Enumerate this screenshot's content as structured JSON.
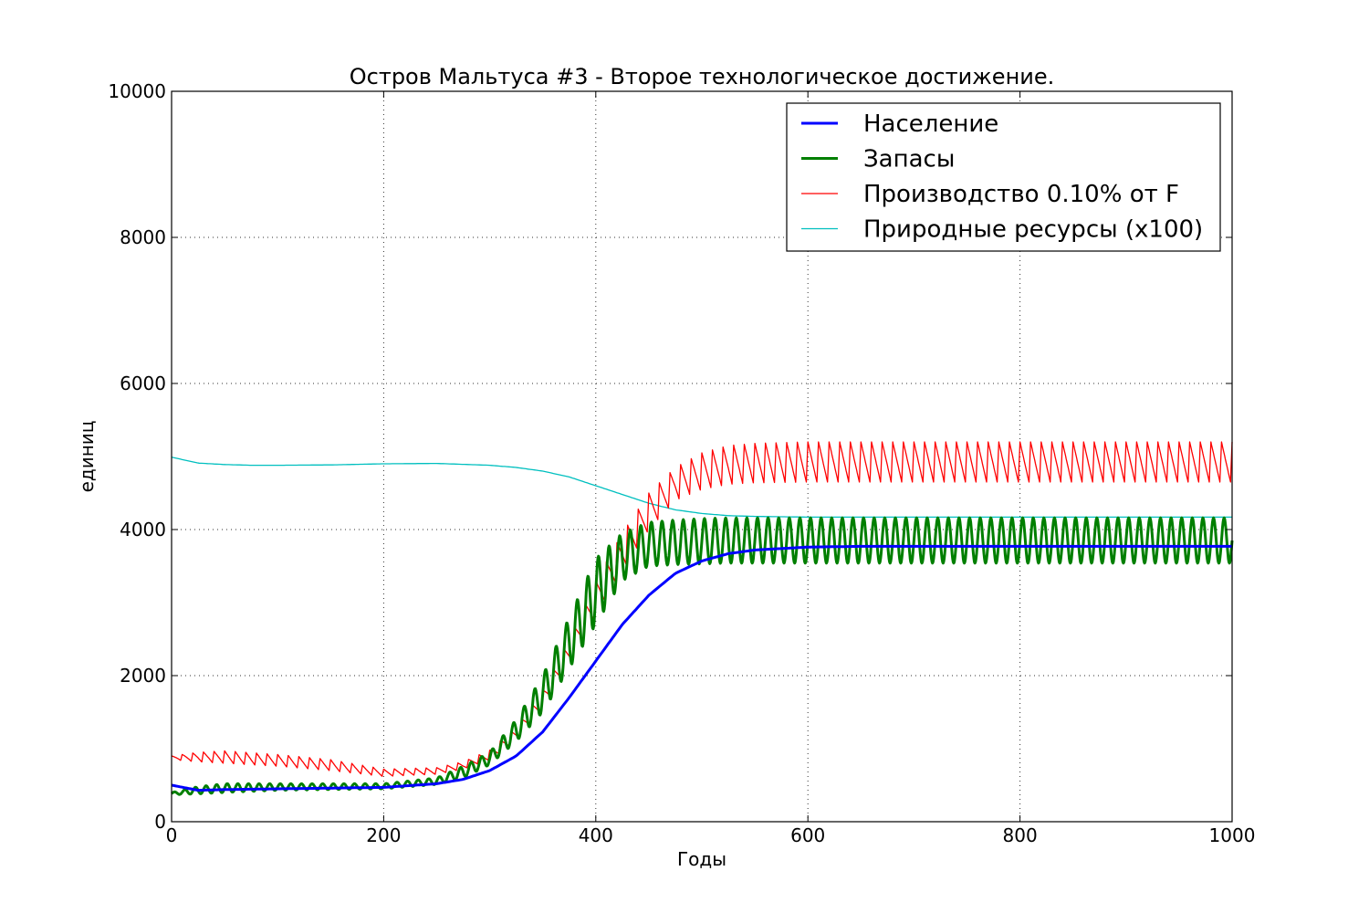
{
  "chart_data": {
    "type": "line",
    "title": "Остров Мальтуса #3 - Второе технологическое достижение.",
    "xlabel": "Годы",
    "ylabel": "единиц",
    "xlim": [
      0,
      1000
    ],
    "ylim": [
      0,
      10000
    ],
    "x_ticks": [
      "0",
      "200",
      "400",
      "600",
      "800",
      "1000"
    ],
    "y_ticks": [
      "0",
      "2000",
      "4000",
      "6000",
      "8000",
      "10000"
    ],
    "grid": true,
    "legend_position": "top-right",
    "series": [
      {
        "name": "Население",
        "color": "#0000ff",
        "linewidth": 3,
        "x": [
          0,
          25,
          50,
          100,
          150,
          200,
          250,
          275,
          300,
          325,
          350,
          375,
          400,
          425,
          450,
          475,
          500,
          525,
          550,
          600,
          650,
          700,
          800,
          900,
          1000
        ],
        "values": [
          500,
          430,
          440,
          450,
          460,
          470,
          520,
          580,
          700,
          900,
          1230,
          1700,
          2200,
          2700,
          3100,
          3400,
          3570,
          3670,
          3720,
          3760,
          3770,
          3770,
          3770,
          3770,
          3770
        ]
      },
      {
        "name": "Запасы",
        "color": "#007f00",
        "linewidth": 3,
        "oscillation_period_years": 10,
        "oscillation_description": "sawtooth/oscillating around the envelope",
        "x": [
          0,
          25,
          50,
          100,
          150,
          200,
          250,
          275,
          300,
          325,
          350,
          375,
          400,
          425,
          450,
          475,
          500,
          525,
          550,
          600,
          700,
          800,
          900,
          1000
        ],
        "low": [
          370,
          380,
          400,
          430,
          440,
          450,
          510,
          600,
          780,
          1100,
          1500,
          2100,
          2700,
          3300,
          3500,
          3520,
          3530,
          3540,
          3540,
          3540,
          3540,
          3540,
          3540,
          3540
        ],
        "high": [
          400,
          480,
          520,
          520,
          520,
          520,
          600,
          760,
          950,
          1400,
          2000,
          2800,
          3600,
          3950,
          4100,
          4130,
          4150,
          4160,
          4160,
          4160,
          4160,
          4160,
          4160,
          4160
        ]
      },
      {
        "name": "Производство  0.10% от F",
        "color": "#ff0000",
        "linewidth": 1.3,
        "oscillation_period_years": 10,
        "x": [
          0,
          25,
          50,
          100,
          150,
          200,
          250,
          275,
          300,
          325,
          350,
          375,
          400,
          425,
          450,
          475,
          500,
          525,
          550,
          600,
          700,
          800,
          900,
          1000
        ],
        "low": [
          850,
          820,
          800,
          760,
          700,
          620,
          650,
          720,
          850,
          1100,
          1500,
          2100,
          2800,
          3450,
          4000,
          4400,
          4550,
          4620,
          4640,
          4650,
          4650,
          4650,
          4650,
          4650
        ],
        "high": [
          900,
          950,
          970,
          920,
          850,
          720,
          740,
          820,
          980,
          1300,
          1800,
          2500,
          3300,
          3950,
          4500,
          4850,
          5050,
          5150,
          5180,
          5200,
          5200,
          5200,
          5200,
          5200
        ]
      },
      {
        "name": "Природные ресурсы (x100)",
        "color": "#00bfbf",
        "linewidth": 1.3,
        "x": [
          0,
          25,
          50,
          75,
          100,
          150,
          200,
          250,
          300,
          325,
          350,
          375,
          400,
          425,
          450,
          475,
          500,
          525,
          550,
          575,
          600,
          700,
          800,
          900,
          1000
        ],
        "values": [
          4990,
          4910,
          4890,
          4880,
          4880,
          4885,
          4900,
          4905,
          4880,
          4850,
          4800,
          4720,
          4600,
          4480,
          4360,
          4270,
          4220,
          4190,
          4180,
          4175,
          4170,
          4170,
          4170,
          4170,
          4170
        ]
      }
    ]
  }
}
